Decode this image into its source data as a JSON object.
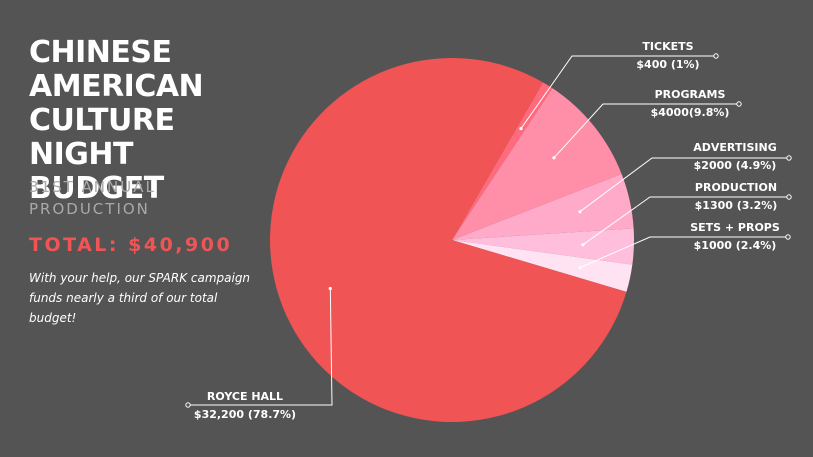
{
  "header": {
    "title_lines": [
      "CHINESE",
      "AMERICAN",
      "CULTURE NIGHT",
      "BUDGET"
    ],
    "subtitle_lines": [
      "31ST ANNUAL",
      "PRODUCTION"
    ],
    "total": "TOTAL: $40,900",
    "note": "With your help, our SPARK campaign funds nearly a third of our total budget!"
  },
  "chart_data": {
    "type": "pie",
    "slices": [
      {
        "label": "TICKETS",
        "value_label": "$400 (1%)",
        "value": 400,
        "percent": 1,
        "color": "#ff6b7c"
      },
      {
        "label": "PROGRAMS",
        "value_label": "$4000(9.8%)",
        "value": 4000,
        "percent": 9.8,
        "color": "#ff8ea9"
      },
      {
        "label": "ADVERTISING",
        "value_label": "$2000 (4.9%)",
        "value": 2000,
        "percent": 4.9,
        "color": "#ffaac8"
      },
      {
        "label": "PRODUCTION",
        "value_label": "$1300 (3.2%)",
        "value": 1300,
        "percent": 3.2,
        "color": "#ffbedb"
      },
      {
        "label": "SETS + PROPS",
        "value_label": "$1000 (2.4%)",
        "value": 1000,
        "percent": 2.4,
        "color": "#ffe3f2"
      },
      {
        "label": "ROYCE HALL",
        "value_label": "$32,200 (78.7%)",
        "value": 32200,
        "percent": 78.7,
        "color": "#f05454"
      }
    ],
    "label_color": "#ffffff"
  }
}
